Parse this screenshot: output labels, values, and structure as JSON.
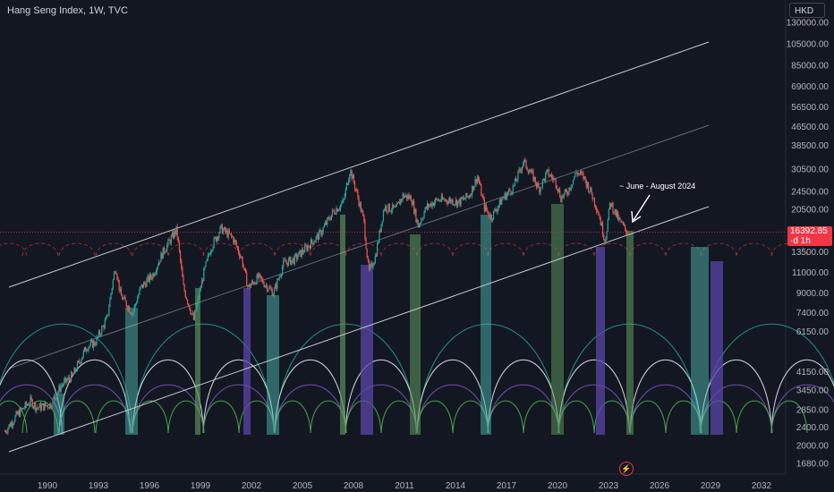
{
  "header": {
    "title": "Hang Seng Index, 1W, TVC",
    "currency": "HKD"
  },
  "price_badge": {
    "price": "16392.85",
    "countdown": "·d 1h"
  },
  "annotation": {
    "text": "~ June - August 2024"
  },
  "colors": {
    "background": "#131722",
    "candle_up": "#26a69a",
    "candle_down": "#ef5350",
    "price_line": "#f23645",
    "channel": "#c9ccd4",
    "cycle_teal": "#26a69a",
    "cycle_white": "#e0e3eb",
    "cycle_purple": "#7e57c2",
    "cycle_green": "#4caf50",
    "bar_green": "#5a8f5a",
    "bar_purple": "#5b45a8",
    "bar_teal": "#4db6ac"
  },
  "icons": {
    "lightning": "lightning-icon"
  },
  "chart_data": {
    "type": "line",
    "title": "Hang Seng Index, 1W, TVC",
    "y_scale": "log",
    "ylim": [
      1400,
      140000
    ],
    "xlim": [
      1987.5,
      2034.0
    ],
    "x_ticks": [
      "1990",
      "1993",
      "1996",
      "1999",
      "2002",
      "2005",
      "2008",
      "2011",
      "2014",
      "2017",
      "2020",
      "2023",
      "2026",
      "2029",
      "2032"
    ],
    "y_ticks": [
      "130000.00",
      "105000.00",
      "85000.00",
      "69000.00",
      "56500.00",
      "46500.00",
      "38500.00",
      "30500.00",
      "24500.00",
      "20500.00",
      "13500.00",
      "11000.00",
      "9000.00",
      "7400.00",
      "6150.00",
      "4150.00",
      "3450.00",
      "2850.00",
      "2400.00",
      "2000.00",
      "1680.00"
    ],
    "last_price": 16392.85,
    "series": [
      {
        "x": [
          1987.5,
          1988.2,
          1989.0,
          1989.4,
          1990.2,
          1990.8,
          1991.5,
          1992.3,
          1992.8,
          1993.5,
          1994.0,
          1994.3,
          1995.0,
          1995.5,
          1996.2,
          1996.8,
          1997.6,
          1998.0,
          1998.6,
          1999.2,
          1999.6,
          2000.2,
          2000.9,
          2001.4,
          2001.8,
          2002.4,
          2003.3,
          2003.9,
          2004.5,
          2005.2,
          2006.0,
          2006.8,
          2007.4,
          2007.8,
          2008.2,
          2008.6,
          2008.9,
          2009.3,
          2009.8,
          2010.5,
          2010.9,
          2011.4,
          2011.8,
          2012.3,
          2012.9,
          2013.6,
          2014.2,
          2014.8,
          2015.3,
          2015.7,
          2016.1,
          2016.8,
          2017.4,
          2018.0,
          2018.6,
          2018.9,
          2019.4,
          2019.9,
          2020.2,
          2020.6,
          2021.1,
          2021.5,
          2022.0,
          2022.4,
          2022.8,
          2023.1,
          2023.6,
          2023.9,
          2024.1
        ],
        "y": [
          2300,
          2700,
          3100,
          2900,
          3000,
          3600,
          4000,
          5300,
          5500,
          7000,
          11800,
          8800,
          7400,
          9500,
          10800,
          13500,
          16800,
          9500,
          6900,
          11000,
          14000,
          17000,
          15500,
          12800,
          9500,
          10500,
          9000,
          12100,
          12500,
          14000,
          16000,
          20000,
          22000,
          30500,
          24000,
          18500,
          11000,
          13000,
          21000,
          20500,
          23500,
          23000,
          17500,
          21000,
          22500,
          22500,
          22000,
          23500,
          28500,
          21000,
          19000,
          23000,
          25500,
          33000,
          28000,
          25000,
          29500,
          27000,
          23000,
          24500,
          29500,
          28500,
          24000,
          20000,
          15000,
          22000,
          18500,
          17200,
          16400
        ]
      }
    ]
  }
}
